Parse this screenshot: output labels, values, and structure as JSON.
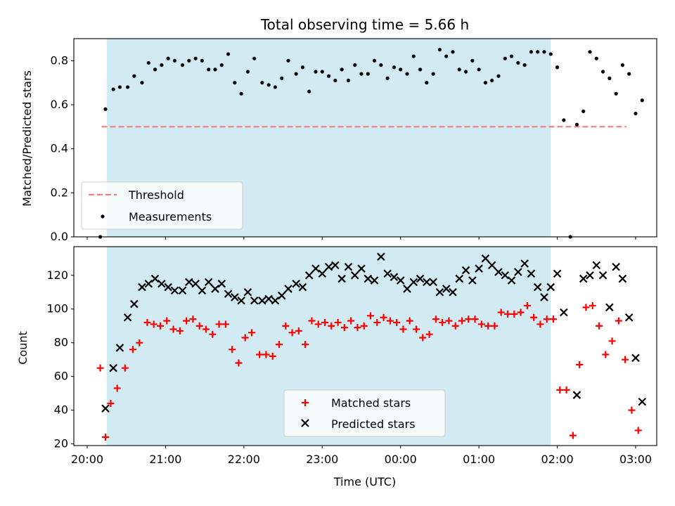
{
  "chart_data": [
    {
      "type": "scatter",
      "title": "Total observing time = 5.66 h",
      "ylabel": "Matched/Predicted stars",
      "xlabel": "",
      "ylim": [
        0,
        0.9
      ],
      "yticks": [
        "0.0",
        "0.2",
        "0.4",
        "0.6",
        "0.8"
      ],
      "xlim": [
        "20:00",
        "03:00"
      ],
      "shaded_interval": [
        "20:15",
        "01:55"
      ],
      "shade_color": "#add8e6",
      "threshold": {
        "name": "Threshold",
        "y": 0.5,
        "x_start": "20:11",
        "x_end": "02:53",
        "color": "#f08080"
      },
      "series": [
        {
          "name": "Measurements",
          "color": "#000000",
          "marker": "dot",
          "points": [
            [
              "20:10",
              0.0
            ],
            [
              "20:14",
              0.58
            ],
            [
              "20:20",
              0.67
            ],
            [
              "20:25",
              0.68
            ],
            [
              "20:31",
              0.68
            ],
            [
              "20:36",
              0.73
            ],
            [
              "20:42",
              0.7
            ],
            [
              "20:47",
              0.79
            ],
            [
              "20:52",
              0.76
            ],
            [
              "20:57",
              0.78
            ],
            [
              "21:02",
              0.81
            ],
            [
              "21:07",
              0.8
            ],
            [
              "21:13",
              0.78
            ],
            [
              "21:18",
              0.8
            ],
            [
              "21:23",
              0.81
            ],
            [
              "21:28",
              0.8
            ],
            [
              "21:33",
              0.76
            ],
            [
              "21:38",
              0.76
            ],
            [
              "21:43",
              0.78
            ],
            [
              "21:48",
              0.83
            ],
            [
              "21:53",
              0.7
            ],
            [
              "21:58",
              0.65
            ],
            [
              "22:03",
              0.75
            ],
            [
              "22:08",
              0.81
            ],
            [
              "22:14",
              0.7
            ],
            [
              "22:19",
              0.69
            ],
            [
              "22:24",
              0.68
            ],
            [
              "22:29",
              0.72
            ],
            [
              "22:34",
              0.8
            ],
            [
              "22:40",
              0.74
            ],
            [
              "22:45",
              0.77
            ],
            [
              "22:50",
              0.66
            ],
            [
              "22:55",
              0.75
            ],
            [
              "23:00",
              0.75
            ],
            [
              "23:05",
              0.73
            ],
            [
              "23:10",
              0.71
            ],
            [
              "23:15",
              0.76
            ],
            [
              "23:20",
              0.71
            ],
            [
              "23:25",
              0.78
            ],
            [
              "23:30",
              0.74
            ],
            [
              "23:35",
              0.74
            ],
            [
              "23:40",
              0.8
            ],
            [
              "23:45",
              0.78
            ],
            [
              "23:50",
              0.72
            ],
            [
              "23:55",
              0.77
            ],
            [
              "00:00",
              0.76
            ],
            [
              "00:05",
              0.74
            ],
            [
              "00:10",
              0.82
            ],
            [
              "00:15",
              0.76
            ],
            [
              "00:20",
              0.7
            ],
            [
              "00:25",
              0.74
            ],
            [
              "00:30",
              0.85
            ],
            [
              "00:35",
              0.82
            ],
            [
              "00:40",
              0.84
            ],
            [
              "00:45",
              0.76
            ],
            [
              "00:50",
              0.75
            ],
            [
              "00:55",
              0.8
            ],
            [
              "01:00",
              0.76
            ],
            [
              "01:05",
              0.7
            ],
            [
              "01:10",
              0.71
            ],
            [
              "01:15",
              0.73
            ],
            [
              "01:20",
              0.81
            ],
            [
              "01:25",
              0.82
            ],
            [
              "01:30",
              0.79
            ],
            [
              "01:35",
              0.78
            ],
            [
              "01:40",
              0.84
            ],
            [
              "01:45",
              0.84
            ],
            [
              "01:50",
              0.84
            ],
            [
              "01:55",
              0.83
            ],
            [
              "02:00",
              0.77
            ],
            [
              "02:05",
              0.53
            ],
            [
              "02:10",
              0.0
            ],
            [
              "02:15",
              0.51
            ],
            [
              "02:20",
              0.57
            ],
            [
              "02:25",
              0.84
            ],
            [
              "02:30",
              0.81
            ],
            [
              "02:35",
              0.75
            ],
            [
              "02:40",
              0.72
            ],
            [
              "02:45",
              0.65
            ],
            [
              "02:50",
              0.78
            ],
            [
              "02:55",
              0.74
            ],
            [
              "03:00",
              0.56
            ],
            [
              "03:05",
              0.62
            ]
          ]
        }
      ],
      "legend": {
        "position": "lower-left",
        "entries": [
          "Threshold",
          "Measurements"
        ]
      }
    },
    {
      "type": "scatter",
      "title": "",
      "ylabel": "Count",
      "xlabel": "Time (UTC)",
      "ylim": [
        19,
        137
      ],
      "yticks": [
        "20",
        "40",
        "60",
        "80",
        "100",
        "120"
      ],
      "xticks": [
        "20:00",
        "21:00",
        "22:00",
        "23:00",
        "00:00",
        "01:00",
        "02:00",
        "03:00"
      ],
      "xlim": [
        "20:00",
        "03:00"
      ],
      "shaded_interval": [
        "20:15",
        "01:55"
      ],
      "shade_color": "#add8e6",
      "series": [
        {
          "name": "Matched stars",
          "color": "#ff0000",
          "marker": "plus",
          "points": [
            [
              "20:10",
              65
            ],
            [
              "20:14",
              24
            ],
            [
              "20:18",
              44
            ],
            [
              "20:23",
              53
            ],
            [
              "20:29",
              65
            ],
            [
              "20:35",
              76
            ],
            [
              "20:40",
              80
            ],
            [
              "20:46",
              92
            ],
            [
              "20:51",
              91
            ],
            [
              "20:56",
              90
            ],
            [
              "21:01",
              93
            ],
            [
              "21:06",
              88
            ],
            [
              "21:11",
              87
            ],
            [
              "21:16",
              93
            ],
            [
              "21:21",
              94
            ],
            [
              "21:26",
              90
            ],
            [
              "21:31",
              88
            ],
            [
              "21:36",
              85
            ],
            [
              "21:41",
              91
            ],
            [
              "21:46",
              91
            ],
            [
              "21:51",
              76
            ],
            [
              "21:56",
              68
            ],
            [
              "22:01",
              83
            ],
            [
              "22:06",
              86
            ],
            [
              "22:12",
              73
            ],
            [
              "22:17",
              73
            ],
            [
              "22:22",
              72
            ],
            [
              "22:27",
              79
            ],
            [
              "22:32",
              90
            ],
            [
              "22:37",
              86
            ],
            [
              "22:42",
              87
            ],
            [
              "22:47",
              79
            ],
            [
              "22:52",
              93
            ],
            [
              "22:57",
              91
            ],
            [
              "23:02",
              92
            ],
            [
              "23:07",
              90
            ],
            [
              "23:12",
              92
            ],
            [
              "23:17",
              89
            ],
            [
              "23:22",
              93
            ],
            [
              "23:27",
              89
            ],
            [
              "23:32",
              90
            ],
            [
              "23:37",
              96
            ],
            [
              "23:42",
              92
            ],
            [
              "23:47",
              95
            ],
            [
              "23:52",
              93
            ],
            [
              "23:57",
              92
            ],
            [
              "00:02",
              88
            ],
            [
              "00:07",
              93
            ],
            [
              "00:12",
              88
            ],
            [
              "00:17",
              83
            ],
            [
              "00:22",
              85
            ],
            [
              "00:27",
              94
            ],
            [
              "00:32",
              92
            ],
            [
              "00:37",
              93
            ],
            [
              "00:42",
              90
            ],
            [
              "00:47",
              93
            ],
            [
              "00:52",
              94
            ],
            [
              "00:57",
              94
            ],
            [
              "01:02",
              91
            ],
            [
              "01:07",
              90
            ],
            [
              "01:12",
              90
            ],
            [
              "01:17",
              98
            ],
            [
              "01:22",
              97
            ],
            [
              "01:27",
              97
            ],
            [
              "01:32",
              98
            ],
            [
              "01:37",
              102
            ],
            [
              "01:42",
              95
            ],
            [
              "01:47",
              91
            ],
            [
              "01:52",
              94
            ],
            [
              "01:57",
              94
            ],
            [
              "02:02",
              52
            ],
            [
              "02:07",
              52
            ],
            [
              "02:12",
              25
            ],
            [
              "02:17",
              67
            ],
            [
              "02:22",
              101
            ],
            [
              "02:27",
              102
            ],
            [
              "02:32",
              90
            ],
            [
              "02:37",
              73
            ],
            [
              "02:42",
              81
            ],
            [
              "02:47",
              93
            ],
            [
              "02:52",
              70
            ],
            [
              "02:57",
              40
            ],
            [
              "03:02",
              28
            ]
          ]
        },
        {
          "name": "Predicted stars",
          "color": "#000000",
          "marker": "x",
          "points": [
            [
              "20:14",
              41
            ],
            [
              "20:20",
              65
            ],
            [
              "20:25",
              77
            ],
            [
              "20:31",
              95
            ],
            [
              "20:36",
              103
            ],
            [
              "20:42",
              113
            ],
            [
              "20:47",
              115
            ],
            [
              "20:52",
              118
            ],
            [
              "20:57",
              115
            ],
            [
              "21:02",
              113
            ],
            [
              "21:07",
              111
            ],
            [
              "21:13",
              111
            ],
            [
              "21:18",
              116
            ],
            [
              "21:23",
              115
            ],
            [
              "21:28",
              111
            ],
            [
              "21:33",
              116
            ],
            [
              "21:38",
              112
            ],
            [
              "21:43",
              115
            ],
            [
              "21:48",
              109
            ],
            [
              "21:53",
              107
            ],
            [
              "21:58",
              105
            ],
            [
              "22:03",
              110
            ],
            [
              "22:08",
              105
            ],
            [
              "22:14",
              105
            ],
            [
              "22:19",
              106
            ],
            [
              "22:24",
              105
            ],
            [
              "22:29",
              108
            ],
            [
              "22:34",
              112
            ],
            [
              "22:40",
              115
            ],
            [
              "22:45",
              113
            ],
            [
              "22:50",
              120
            ],
            [
              "22:55",
              124
            ],
            [
              "23:00",
              121
            ],
            [
              "23:05",
              125
            ],
            [
              "23:10",
              126
            ],
            [
              "23:15",
              118
            ],
            [
              "23:20",
              125
            ],
            [
              "23:25",
              120
            ],
            [
              "23:30",
              124
            ],
            [
              "23:35",
              118
            ],
            [
              "23:40",
              117
            ],
            [
              "23:45",
              131
            ],
            [
              "23:50",
              121
            ],
            [
              "23:55",
              119
            ],
            [
              "00:00",
              117
            ],
            [
              "00:05",
              112
            ],
            [
              "00:10",
              116
            ],
            [
              "00:15",
              118
            ],
            [
              "00:20",
              116
            ],
            [
              "00:25",
              116
            ],
            [
              "00:30",
              110
            ],
            [
              "00:35",
              112
            ],
            [
              "00:40",
              110
            ],
            [
              "00:45",
              118
            ],
            [
              "00:50",
              123
            ],
            [
              "00:55",
              117
            ],
            [
              "01:00",
              124
            ],
            [
              "01:05",
              130
            ],
            [
              "01:10",
              126
            ],
            [
              "01:15",
              122
            ],
            [
              "01:20",
              120
            ],
            [
              "01:25",
              117
            ],
            [
              "01:30",
              122
            ],
            [
              "01:35",
              127
            ],
            [
              "01:40",
              121
            ],
            [
              "01:45",
              113
            ],
            [
              "01:50",
              107
            ],
            [
              "01:55",
              113
            ],
            [
              "02:00",
              121
            ],
            [
              "02:05",
              98
            ],
            [
              "02:15",
              49
            ],
            [
              "02:20",
              118
            ],
            [
              "02:25",
              120
            ],
            [
              "02:30",
              126
            ],
            [
              "02:35",
              120
            ],
            [
              "02:40",
              101
            ],
            [
              "02:45",
              125
            ],
            [
              "02:50",
              118
            ],
            [
              "02:55",
              95
            ],
            [
              "03:00",
              71
            ],
            [
              "03:05",
              45
            ]
          ]
        }
      ],
      "legend": {
        "position": "lower-center",
        "entries": [
          "Matched stars",
          "Predicted stars"
        ]
      }
    }
  ]
}
